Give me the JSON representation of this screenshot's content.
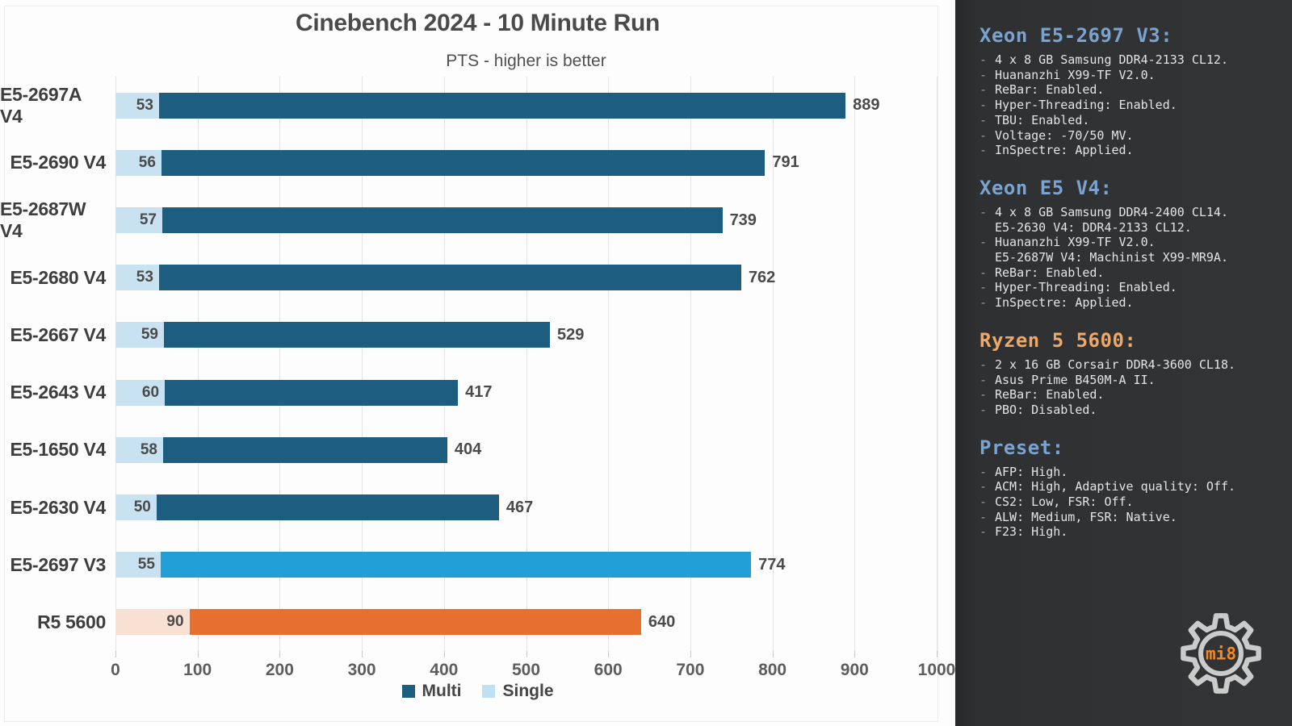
{
  "chart_data": {
    "type": "bar",
    "orientation": "horizontal",
    "title": "Cinebench 2024 - 10 Minute Run",
    "subtitle": "PTS - higher is better",
    "xlabel": "",
    "ylabel": "",
    "xlim": [
      0,
      1000
    ],
    "x_ticks": [
      0,
      100,
      200,
      300,
      400,
      500,
      600,
      700,
      800,
      900,
      1000
    ],
    "grid": "vertical",
    "legend_position": "bottom-center",
    "categories": [
      "E5-2697A V4",
      "E5-2690 V4",
      "E5-2687W V4",
      "E5-2680 V4",
      "E5-2667 V4",
      "E5-2643 V4",
      "E5-1650 V4",
      "E5-2630 V4",
      "E5-2697 V3",
      "R5 5600"
    ],
    "series": [
      {
        "name": "Multi",
        "values": [
          889,
          791,
          739,
          762,
          529,
          417,
          404,
          467,
          774,
          640
        ]
      },
      {
        "name": "Single",
        "values": [
          53,
          56,
          57,
          53,
          59,
          60,
          58,
          50,
          55,
          90
        ]
      }
    ],
    "row_colors": [
      {
        "multi": "#1d5e80",
        "single": "#c9e2f2"
      },
      {
        "multi": "#1d5e80",
        "single": "#c9e2f2"
      },
      {
        "multi": "#1d5e80",
        "single": "#c9e2f2"
      },
      {
        "multi": "#1d5e80",
        "single": "#c9e2f2"
      },
      {
        "multi": "#1d5e80",
        "single": "#c9e2f2"
      },
      {
        "multi": "#1d5e80",
        "single": "#c9e2f2"
      },
      {
        "multi": "#1d5e80",
        "single": "#c9e2f2"
      },
      {
        "multi": "#1d5e80",
        "single": "#c9e2f2"
      },
      {
        "multi": "#219fd6",
        "single": "#c9e2f2"
      },
      {
        "multi": "#e8702e",
        "single": "#f8e0d3"
      }
    ],
    "legend": [
      {
        "label": "Multi",
        "color": "#1d5e80"
      },
      {
        "label": "Single",
        "color": "#bfe0f2"
      }
    ]
  },
  "sidebar": {
    "sections": [
      {
        "title": "Xeon E5-2697 V3:",
        "title_color": "#7aa3cf",
        "lines": [
          {
            "bullet": true,
            "text": "4 x 8 GB Samsung DDR4-2133 CL12."
          },
          {
            "bullet": true,
            "text": "Huananzhi X99-TF V2.0."
          },
          {
            "bullet": true,
            "text": "ReBar: Enabled."
          },
          {
            "bullet": true,
            "text": "Hyper-Threading: Enabled."
          },
          {
            "bullet": true,
            "text": "TBU: Enabled."
          },
          {
            "bullet": true,
            "text": "Voltage: -70/50 MV."
          },
          {
            "bullet": true,
            "text": "InSpectre: Applied."
          }
        ]
      },
      {
        "title": "Xeon E5 V4:",
        "title_color": "#7aa3cf",
        "lines": [
          {
            "bullet": true,
            "text": "4 x 8 GB Samsung DDR4-2400 CL14."
          },
          {
            "bullet": false,
            "text": "E5-2630 V4: DDR4-2133 CL12."
          },
          {
            "bullet": true,
            "text": "Huananzhi X99-TF V2.0."
          },
          {
            "bullet": false,
            "text": "E5-2687W V4: Machinist X99-MR9A."
          },
          {
            "bullet": true,
            "text": "ReBar: Enabled."
          },
          {
            "bullet": true,
            "text": "Hyper-Threading: Enabled."
          },
          {
            "bullet": true,
            "text": "InSpectre: Applied."
          }
        ]
      },
      {
        "title": "Ryzen 5 5600:",
        "title_color": "#efa868",
        "lines": [
          {
            "bullet": true,
            "text": "2 x 16 GB Corsair DDR4-3600 CL18."
          },
          {
            "bullet": true,
            "text": "Asus Prime B450M-A II."
          },
          {
            "bullet": true,
            "text": "ReBar: Enabled."
          },
          {
            "bullet": true,
            "text": "PBO: Disabled."
          }
        ]
      },
      {
        "title": "Preset:",
        "title_color": "#7aa3cf",
        "lines": [
          {
            "bullet": true,
            "text": "AFP: High."
          },
          {
            "bullet": true,
            "text": "ACM: High, Adaptive quality: Off."
          },
          {
            "bullet": true,
            "text": "CS2: Low, FSR: Off."
          },
          {
            "bullet": true,
            "text": "ALW: Medium, FSR: Native."
          },
          {
            "bullet": true,
            "text": "F23: High."
          }
        ]
      }
    ]
  },
  "logo": {
    "text": "mi8",
    "text_color": "#f08a2c",
    "gear_color": "#cbcbcb"
  }
}
